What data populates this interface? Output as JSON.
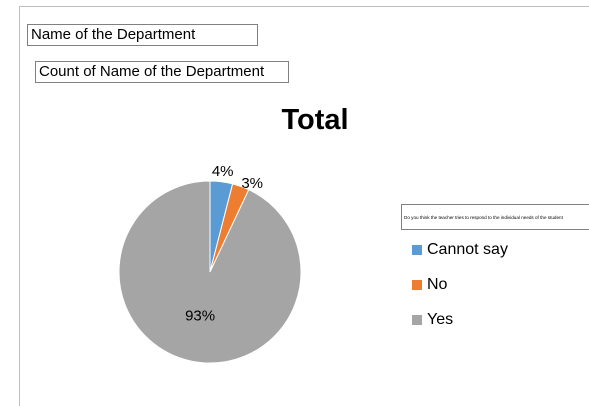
{
  "fields": {
    "department": "Name of the Department",
    "count": "Count of Name of the Department"
  },
  "chart_data": {
    "type": "pie",
    "title": "Total",
    "legend_title": "Do you think the teacher tries to respond to the individual needs of the student",
    "legend_position": "right",
    "categories": [
      "Cannot say",
      "No",
      "Yes"
    ],
    "values": [
      4,
      3,
      93
    ],
    "labels": [
      "4%",
      "3%",
      "93%"
    ],
    "colors": [
      "#5b9bd5",
      "#ed7d31",
      "#a5a5a5"
    ]
  }
}
